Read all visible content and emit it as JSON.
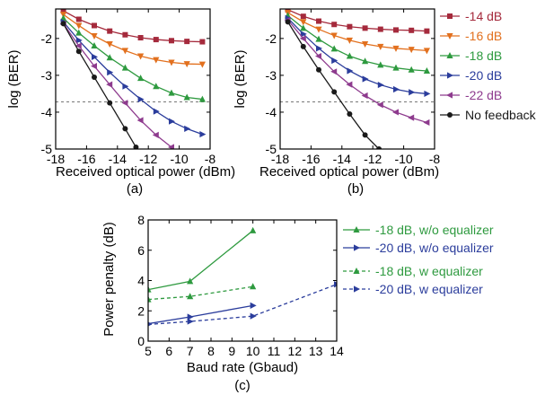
{
  "chart_data": [
    {
      "type": "line",
      "panel_label": "(a)",
      "xlabel": "Received optical power (dBm)",
      "ylabel": "log (BER)",
      "xlim": [
        -18,
        -8
      ],
      "ylim": [
        -5,
        -1.2
      ],
      "xticks": [
        -18,
        -16,
        -14,
        -12,
        -10,
        -8
      ],
      "yticks": [
        -2,
        -3,
        -4,
        -5
      ],
      "threshold_line": -3.72,
      "series": [
        {
          "name": "-14 dB",
          "color": "#a52a3c",
          "marker": "square",
          "x": [
            -17.5,
            -16.5,
            -15.5,
            -14.5,
            -13.5,
            -12.5,
            -11.5,
            -10.5,
            -9.5,
            -8.5
          ],
          "y": [
            -1.25,
            -1.48,
            -1.65,
            -1.8,
            -1.9,
            -1.98,
            -2.03,
            -2.06,
            -2.08,
            -2.09
          ]
        },
        {
          "name": "-16 dB",
          "color": "#e2701e",
          "marker": "triangle-down",
          "x": [
            -17.5,
            -16.5,
            -15.5,
            -14.5,
            -13.5,
            -12.5,
            -11.5,
            -10.5,
            -9.5,
            -8.5
          ],
          "y": [
            -1.35,
            -1.65,
            -1.93,
            -2.15,
            -2.33,
            -2.48,
            -2.58,
            -2.65,
            -2.69,
            -2.7
          ]
        },
        {
          "name": "-18 dB",
          "color": "#2e9a3f",
          "marker": "triangle-up",
          "x": [
            -17.5,
            -16.5,
            -15.5,
            -14.5,
            -13.5,
            -12.5,
            -11.5,
            -10.5,
            -9.5,
            -8.5
          ],
          "y": [
            -1.45,
            -1.85,
            -2.2,
            -2.52,
            -2.8,
            -3.08,
            -3.3,
            -3.48,
            -3.6,
            -3.65
          ]
        },
        {
          "name": "-20 dB",
          "color": "#2b3d9c",
          "marker": "triangle-right",
          "x": [
            -17.5,
            -16.5,
            -15.5,
            -14.5,
            -13.5,
            -12.5,
            -11.5,
            -10.5,
            -9.5,
            -8.5
          ],
          "y": [
            -1.55,
            -2.05,
            -2.5,
            -2.92,
            -3.3,
            -3.65,
            -3.98,
            -4.25,
            -4.45,
            -4.6
          ]
        },
        {
          "name": "-22 dB",
          "color": "#8e3b8e",
          "marker": "triangle-left",
          "x": [
            -17.5,
            -16.5,
            -15.5,
            -14.5,
            -13.5,
            -12.5,
            -11.5,
            -10.5
          ],
          "y": [
            -1.6,
            -2.2,
            -2.75,
            -3.25,
            -3.75,
            -4.22,
            -4.62,
            -4.95
          ]
        },
        {
          "name": "No feedback",
          "color": "#1a1a1a",
          "marker": "circle",
          "x": [
            -17.5,
            -16.5,
            -15.5,
            -14.5,
            -13.5,
            -12.8
          ],
          "y": [
            -1.6,
            -2.35,
            -3.05,
            -3.75,
            -4.45,
            -4.95
          ]
        }
      ]
    },
    {
      "type": "line",
      "panel_label": "(b)",
      "xlabel": "Received optical power (dBm)",
      "ylabel": "log (BER)",
      "xlim": [
        -18,
        -8
      ],
      "ylim": [
        -5,
        -1.2
      ],
      "xticks": [
        -18,
        -16,
        -14,
        -12,
        -10,
        -8
      ],
      "yticks": [
        -2,
        -3,
        -4,
        -5
      ],
      "threshold_line": -3.72,
      "legend": [
        "-14 dB",
        "-16 dB",
        "-18 dB",
        "-20 dB",
        "-22 dB",
        "No feedback"
      ],
      "series": [
        {
          "name": "-14 dB",
          "color": "#a52a3c",
          "marker": "square",
          "x": [
            -17.5,
            -16.5,
            -15.5,
            -14.5,
            -13.5,
            -12.5,
            -11.5,
            -10.5,
            -9.5,
            -8.5
          ],
          "y": [
            -1.22,
            -1.4,
            -1.53,
            -1.62,
            -1.68,
            -1.72,
            -1.75,
            -1.77,
            -1.78,
            -1.8
          ]
        },
        {
          "name": "-16 dB",
          "color": "#e2701e",
          "marker": "triangle-down",
          "x": [
            -17.5,
            -16.5,
            -15.5,
            -14.5,
            -13.5,
            -12.5,
            -11.5,
            -10.5,
            -9.5,
            -8.5
          ],
          "y": [
            -1.3,
            -1.55,
            -1.75,
            -1.92,
            -2.05,
            -2.15,
            -2.22,
            -2.27,
            -2.3,
            -2.33
          ]
        },
        {
          "name": "-18 dB",
          "color": "#2e9a3f",
          "marker": "triangle-up",
          "x": [
            -17.5,
            -16.5,
            -15.5,
            -14.5,
            -13.5,
            -12.5,
            -11.5,
            -10.5,
            -9.5,
            -8.5
          ],
          "y": [
            -1.38,
            -1.72,
            -2.02,
            -2.28,
            -2.48,
            -2.62,
            -2.72,
            -2.8,
            -2.85,
            -2.88
          ]
        },
        {
          "name": "-20 dB",
          "color": "#2b3d9c",
          "marker": "triangle-right",
          "x": [
            -17.5,
            -16.5,
            -15.5,
            -14.5,
            -13.5,
            -12.5,
            -11.5,
            -10.5,
            -9.5,
            -8.5
          ],
          "y": [
            -1.45,
            -1.88,
            -2.27,
            -2.6,
            -2.88,
            -3.1,
            -3.26,
            -3.38,
            -3.46,
            -3.5
          ]
        },
        {
          "name": "-22 dB",
          "color": "#8e3b8e",
          "marker": "triangle-left",
          "x": [
            -17.5,
            -16.5,
            -15.5,
            -14.5,
            -13.5,
            -12.5,
            -11.5,
            -10.5,
            -9.5,
            -8.5
          ],
          "y": [
            -1.5,
            -2.0,
            -2.48,
            -2.9,
            -3.25,
            -3.55,
            -3.8,
            -4.0,
            -4.15,
            -4.28
          ]
        },
        {
          "name": "No feedback",
          "color": "#1a1a1a",
          "marker": "circle",
          "x": [
            -17.5,
            -16.5,
            -15.5,
            -14.5,
            -13.5,
            -12.5,
            -11.6
          ],
          "y": [
            -1.55,
            -2.22,
            -2.85,
            -3.45,
            -4.05,
            -4.62,
            -5.0
          ]
        }
      ]
    },
    {
      "type": "line",
      "panel_label": "(c)",
      "xlabel": "Baud rate (Gbaud)",
      "ylabel": "Power penalty (dB)",
      "xlim": [
        5,
        14
      ],
      "ylim": [
        0,
        8
      ],
      "xticks": [
        5,
        6,
        7,
        8,
        9,
        10,
        11,
        12,
        13,
        14
      ],
      "yticks": [
        0,
        2,
        4,
        6,
        8
      ],
      "legend": [
        "-18 dB, w/o equalizer",
        "-20 dB, w/o equalizer",
        "-18 dB, w equalizer",
        "-20 dB, w equalizer"
      ],
      "series": [
        {
          "name": "-18 dB, w/o equalizer",
          "color": "#2e9a3f",
          "marker": "triangle-up",
          "dash": false,
          "x": [
            5,
            7,
            10
          ],
          "y": [
            3.4,
            3.95,
            7.3
          ]
        },
        {
          "name": "-20 dB, w/o equalizer",
          "color": "#2b3d9c",
          "marker": "triangle-right",
          "dash": false,
          "x": [
            5,
            7,
            10
          ],
          "y": [
            1.15,
            1.6,
            2.35
          ]
        },
        {
          "name": "-18 dB, w equalizer",
          "color": "#2e9a3f",
          "marker": "triangle-up",
          "dash": true,
          "x": [
            5,
            7,
            10
          ],
          "y": [
            2.75,
            2.95,
            3.6
          ]
        },
        {
          "name": "-20 dB, w equalizer",
          "color": "#2b3d9c",
          "marker": "triangle-right",
          "dash": true,
          "x": [
            5,
            7,
            10,
            14
          ],
          "y": [
            1.1,
            1.3,
            1.65,
            3.75
          ]
        }
      ]
    }
  ]
}
